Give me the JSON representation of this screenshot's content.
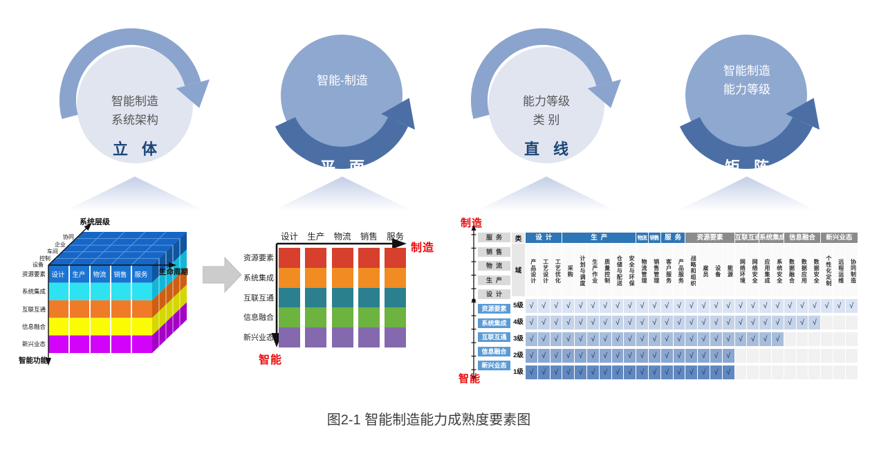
{
  "cycles": [
    {
      "style": "light",
      "lines": [
        "智能制造",
        "系统架构"
      ],
      "keyword": "立 体"
    },
    {
      "style": "dark",
      "lines": [
        "智能-制造"
      ],
      "keyword": "平 面"
    },
    {
      "style": "light",
      "lines": [
        "能力等级",
        "类 别"
      ],
      "keyword": "直 线"
    },
    {
      "style": "dark",
      "lines": [
        "智能制造",
        "能力等级"
      ],
      "keyword": "矩 阵"
    }
  ],
  "cycle_colors": {
    "light_circle": "#e0e5f0",
    "light_ring": "#8ba4cd",
    "dark_circle": "#8fa8d0",
    "dark_ring": "#4b6fa5"
  },
  "cube": {
    "axis_top": "系统层级",
    "axis_right": "生命周期",
    "axis_left": "智能功能",
    "levels": [
      "协同",
      "企业",
      "车间",
      "控制",
      "设备"
    ],
    "columns": [
      "设计",
      "生产",
      "物流",
      "销售",
      "服务"
    ],
    "rows": [
      "资源要素",
      "系统集成",
      "互联互通",
      "信息融合",
      "新兴业态"
    ],
    "top_color": "#1766c5",
    "layer_colors": [
      "#1b74d1",
      "#2ee2f2",
      "#ef7b28",
      "#fbfb05",
      "#d203f8"
    ],
    "layer_side_colors": [
      "#0f55a0",
      "#12b7d8",
      "#cd5f12",
      "#d6d600",
      "#a400c6"
    ]
  },
  "plane_chart": {
    "columns": [
      "设计",
      "生产",
      "物流",
      "销售",
      "服务"
    ],
    "rows": [
      "资源要素",
      "系统集成",
      "互联互通",
      "信息融合",
      "新兴业态"
    ],
    "segment_colors": [
      "#d6402c",
      "#f08c21",
      "#2a808f",
      "#6cb33f",
      "#8569ae"
    ],
    "axis_right_label": "制造",
    "axis_bottom_label": "智能"
  },
  "matrix": {
    "top_label": "制造",
    "bottom_label": "智能",
    "side_categories": [
      "服务",
      "销售",
      "物流",
      "生产",
      "设计"
    ],
    "side_intelligence": [
      "资源要素",
      "系统集成",
      "互联互通",
      "信息融合",
      "新兴业态"
    ],
    "corner_top": "类",
    "corner_sub": "域",
    "groups": [
      {
        "label": "设计",
        "span": 3,
        "color": "blue"
      },
      {
        "label": "生产",
        "span": 6,
        "color": "blue"
      },
      {
        "label": "物流",
        "span": 1,
        "color": "blue"
      },
      {
        "label": "销售",
        "span": 1,
        "color": "blue"
      },
      {
        "label": "服务",
        "span": 2,
        "color": "blue"
      },
      {
        "label": "资源要素",
        "span": 4,
        "color": "gray"
      },
      {
        "label": "互联互通",
        "span": 2,
        "color": "gray"
      },
      {
        "label": "系统集成",
        "span": 2,
        "color": "gray"
      },
      {
        "label": "信息融合",
        "span": 3,
        "color": "gray"
      },
      {
        "label": "新兴业态",
        "span": 3,
        "color": "gray"
      }
    ],
    "domains": [
      "产品设计",
      "工艺设计",
      "工艺优化",
      "采购",
      "计划与调度",
      "生产作业",
      "质量控制",
      "仓储与配送",
      "安全与环保",
      "物流管理",
      "销售管理",
      "客户服务",
      "产品服务",
      "战略和组织",
      "雇员",
      "设备",
      "能源",
      "网络环境",
      "网络安全",
      "应用集成",
      "系统安全",
      "数据融合",
      "数据应用",
      "数据安全",
      "个性化定制",
      "远程运维",
      "协同制造"
    ],
    "levels": [
      {
        "label": "5级",
        "checks": 27,
        "color": "#dae3f3"
      },
      {
        "label": "4级",
        "checks": 24,
        "color": "#c5d3e8"
      },
      {
        "label": "3级",
        "checks": 21,
        "color": "#a8bddb"
      },
      {
        "label": "2级",
        "checks": 17,
        "color": "#8ba6cf"
      },
      {
        "label": "1级",
        "checks": 17,
        "color": "#6288c0"
      }
    ],
    "empty_color": "#f1f1f1",
    "check_glyph": "√"
  },
  "caption": "图2-1 智能制造能力成熟度要素图"
}
